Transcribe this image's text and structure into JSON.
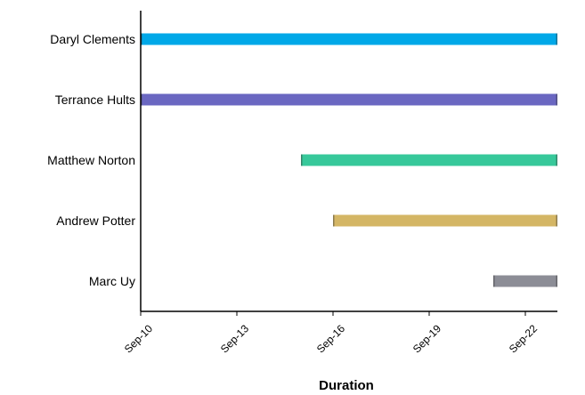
{
  "chart_data": {
    "type": "bar",
    "orientation": "horizontal",
    "title": "",
    "xlabel": "Duration",
    "ylabel": "",
    "x_axis_type": "date",
    "x_ticks": [
      "2023-09-10",
      "2023-09-13",
      "2023-09-16",
      "2023-09-19",
      "2023-09-22"
    ],
    "x_tick_labels": [
      "Sep-10",
      "Sep-13",
      "Sep-16",
      "Sep-19",
      "Sep-22"
    ],
    "xlim": [
      "2023-09-10",
      "2023-09-23"
    ],
    "grid": false,
    "legend": false,
    "categories": [
      "Daryl Clements",
      "Terrance Hults",
      "Matthew Norton",
      "Andrew Potter",
      "Marc Uy"
    ],
    "bars": [
      {
        "category": "Daryl Clements",
        "start": "2023-09-10",
        "end": "2023-09-23",
        "color": "#00A8E8"
      },
      {
        "category": "Terrance Hults",
        "start": "2023-09-10",
        "end": "2023-09-23",
        "color": "#6A67C1"
      },
      {
        "category": "Matthew Norton",
        "start": "2023-09-15",
        "end": "2023-09-23",
        "color": "#37C89A"
      },
      {
        "category": "Andrew Potter",
        "start": "2023-09-16",
        "end": "2023-09-23",
        "color": "#D4B665"
      },
      {
        "category": "Marc Uy",
        "start": "2023-09-21",
        "end": "2023-09-23",
        "color": "#8C8D96"
      }
    ]
  }
}
